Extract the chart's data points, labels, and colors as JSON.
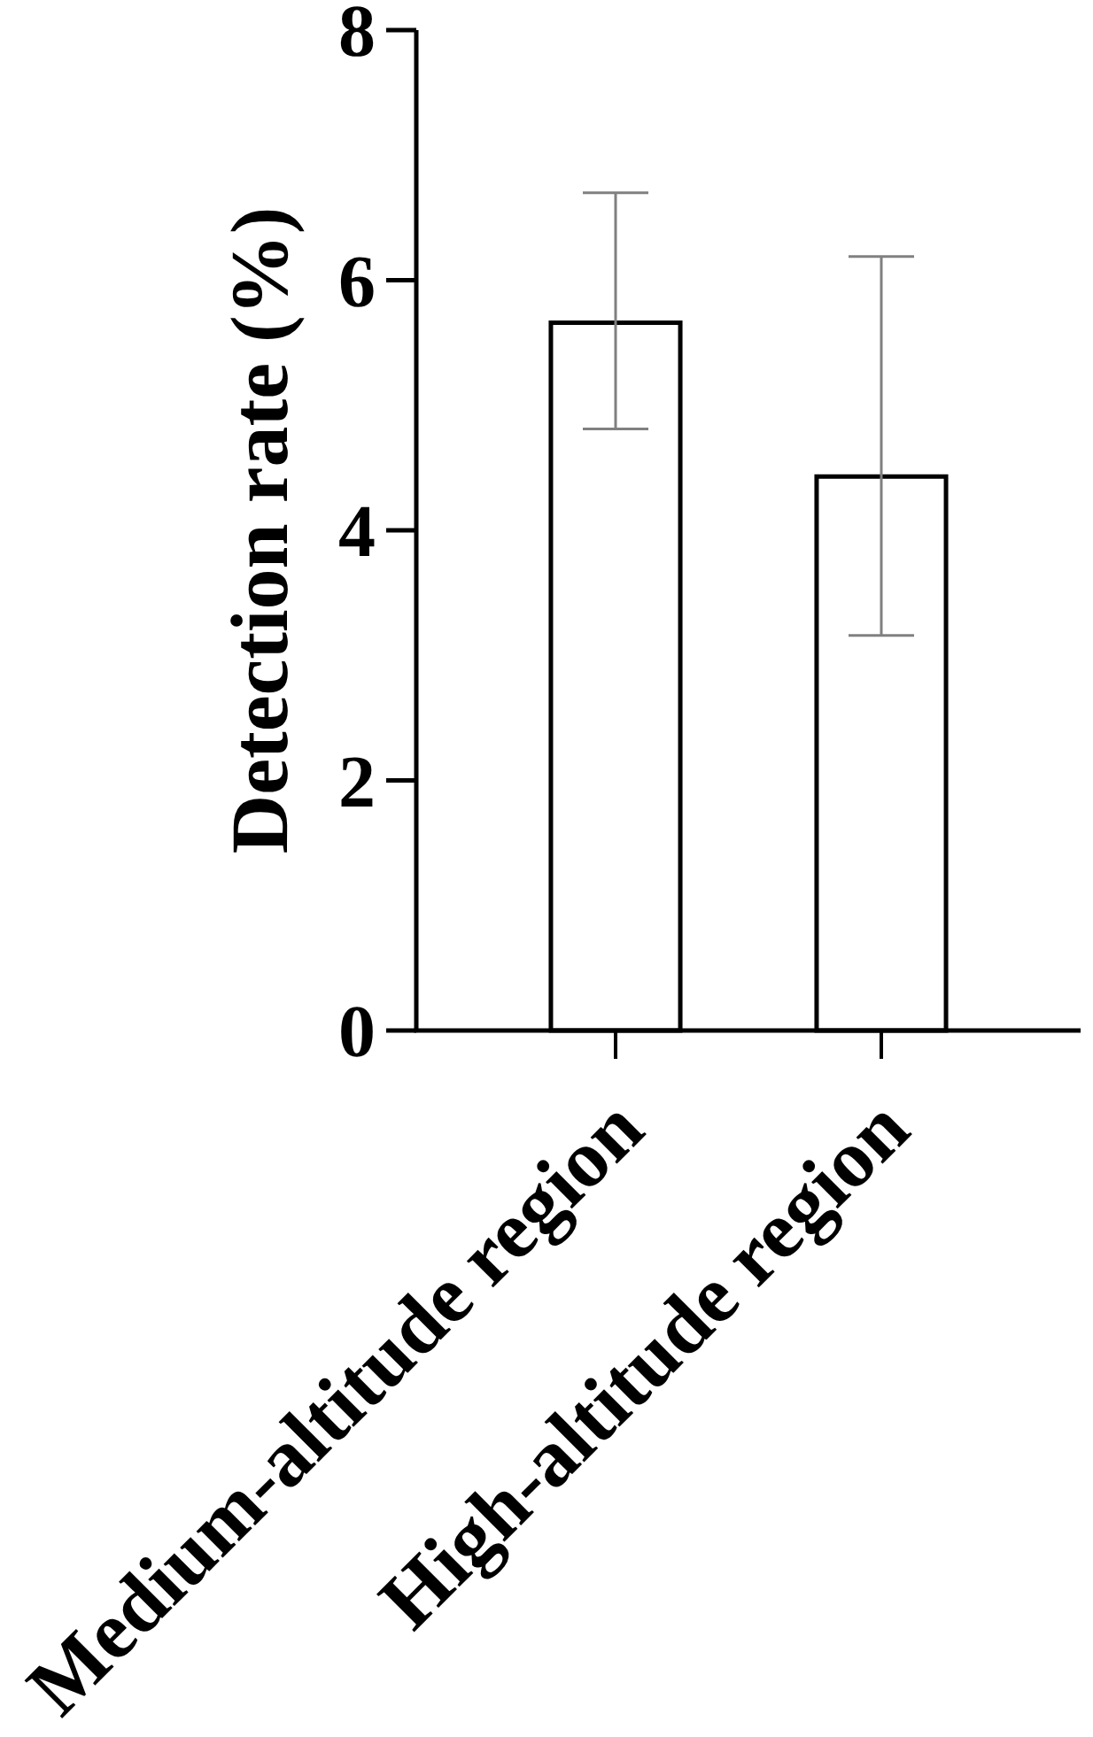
{
  "chart_data": {
    "type": "bar",
    "ylabel": "Detection rate (%)",
    "categories": [
      "Medium-altitude region",
      "High-altitude region"
    ],
    "values": [
      5.66,
      4.43
    ],
    "errors": [
      [
        4.81,
        6.7
      ],
      [
        3.16,
        6.19
      ]
    ],
    "color": "#ffffff",
    "ylim": [
      0,
      8
    ],
    "yticks": [
      0,
      2,
      4,
      6,
      8
    ]
  }
}
